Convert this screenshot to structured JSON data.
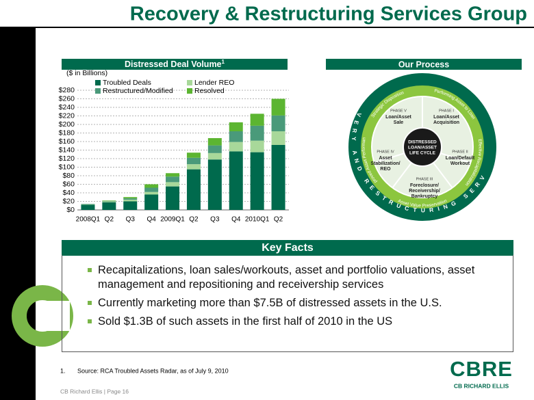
{
  "title": "Recovery & Restructuring Services Group",
  "chart_header": "Distressed Deal Volume",
  "chart_header_note": "1",
  "process_header": "Our Process",
  "chart_data": {
    "type": "bar",
    "stacked": true,
    "subtitle": "($ in Billions)",
    "categories": [
      "2008Q1",
      "Q2",
      "Q3",
      "Q4",
      "2009Q1",
      "Q2",
      "Q3",
      "Q4",
      "2010Q1",
      "Q2"
    ],
    "series": [
      {
        "name": "Troubled Deals",
        "color": "#006a4d",
        "values": [
          12,
          18,
          20,
          36,
          55,
          95,
          118,
          137,
          135,
          152
        ]
      },
      {
        "name": "Lender REO",
        "color": "#a8d89a",
        "values": [
          1,
          2,
          4,
          6,
          10,
          12,
          15,
          22,
          27,
          32
        ]
      },
      {
        "name": "Restructured/Modified",
        "color": "#4a9a7a",
        "values": [
          1,
          1,
          3,
          10,
          13,
          15,
          18,
          25,
          35,
          37
        ]
      },
      {
        "name": "Resolved",
        "color": "#5cb531",
        "values": [
          0,
          1,
          3,
          8,
          8,
          12,
          17,
          21,
          28,
          39
        ]
      }
    ],
    "ylim": [
      0,
      280
    ],
    "yticks": [
      {
        "value": 0,
        "label": "$0"
      },
      {
        "value": 20,
        "label": "$20"
      },
      {
        "value": 40,
        "label": "$40"
      },
      {
        "value": 60,
        "label": "$60"
      },
      {
        "value": 80,
        "label": "$80"
      },
      {
        "value": 100,
        "label": "$100"
      },
      {
        "value": 120,
        "label": "$120"
      },
      {
        "value": 140,
        "label": "$140"
      },
      {
        "value": 160,
        "label": "$160"
      },
      {
        "value": 180,
        "label": "$180"
      },
      {
        "value": 200,
        "label": "$200"
      },
      {
        "value": 220,
        "label": "$220"
      },
      {
        "value": 240,
        "label": "$240"
      },
      {
        "value": 260,
        "label": "$260"
      },
      {
        "value": 280,
        "label": "$280"
      }
    ],
    "grid": true
  },
  "process": {
    "ring_text": "RECOVERY AND RESTRUCTURING SERVICES",
    "center": [
      "DISTRESSED",
      "LOAN/ASSET",
      "LIFE CYCLE"
    ],
    "phases": [
      {
        "label": "PHASE I",
        "name": [
          "Loan/Asset",
          "Acquisition"
        ]
      },
      {
        "label": "PHASE II",
        "name": [
          "Loan/Default",
          "Workout"
        ]
      },
      {
        "label": "PHASE III",
        "name": [
          "Foreclosure/",
          "Receivership/",
          "Bankruptcy"
        ]
      },
      {
        "label": "PHASE IV",
        "name": [
          "Asset",
          "Stabilization/",
          "REO"
        ]
      },
      {
        "label": "PHASE V",
        "name": [
          "Loan/Asset",
          "Sale"
        ]
      }
    ],
    "arcs": [
      "Strategic Disposition",
      "Performing Asset to Loan",
      "Effective Recapitalization",
      "Asset Value Preservation",
      "Improved Asset Performance"
    ]
  },
  "key_facts": {
    "title": "Key Facts",
    "bullets": [
      "Recapitalizations, loan sales/workouts, asset and portfolio valuations, asset management and repositioning and receivership services",
      "Currently marketing more than $7.5B of distressed assets in the U.S.",
      "Sold $1.3B of such assets in the first half of 2010 in the US"
    ]
  },
  "footnote": {
    "number": "1.",
    "text": "Source: RCA Troubled Assets Radar, as of July 9, 2010"
  },
  "footer": "CB Richard Ellis | Page 16",
  "logo": {
    "mark": "CBRE",
    "name": "CB RICHARD ELLIS"
  }
}
